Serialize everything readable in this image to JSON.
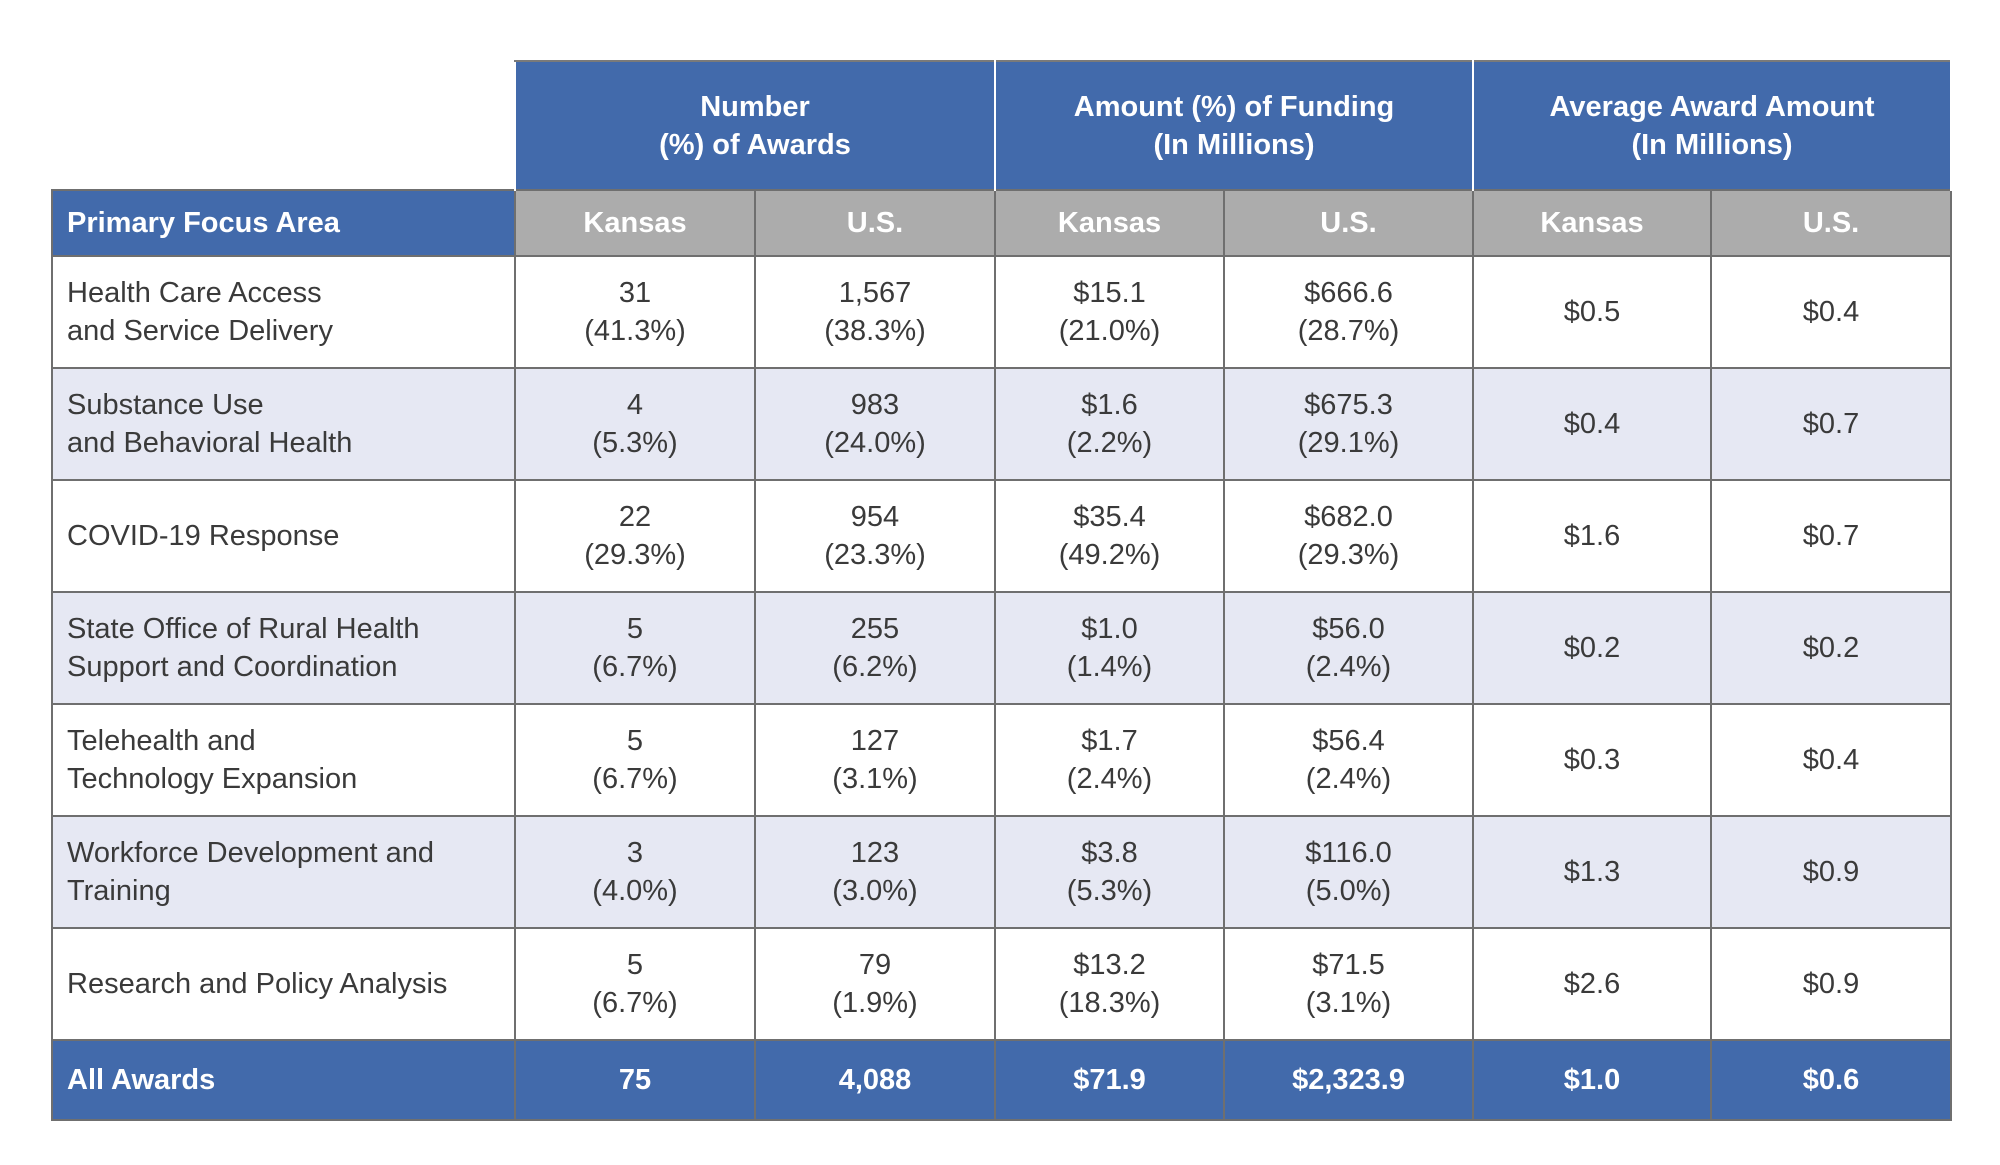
{
  "group_headers": [
    {
      "line1": "Number",
      "line2": "(%) of Awards"
    },
    {
      "line1": "Amount (%) of Funding",
      "line2": "(In Millions)"
    },
    {
      "line1": "Average Award Amount",
      "line2": "(In Millions)"
    }
  ],
  "sub_headers": [
    "Primary Focus Area",
    "Kansas",
    "U.S.",
    "Kansas",
    "U.S.",
    "Kansas",
    "U.S."
  ],
  "rows": [
    {
      "area": [
        "Health Care Access",
        "and Service Delivery"
      ],
      "ks_n": "31",
      "ks_np": "(41.3%)",
      "us_n": "1,567",
      "us_np": "(38.3%)",
      "ks_f": "$15.1",
      "ks_fp": "(21.0%)",
      "us_f": "$666.6",
      "us_fp": "(28.7%)",
      "ks_avg": "$0.5",
      "us_avg": "$0.4"
    },
    {
      "area": [
        "Substance Use",
        "and Behavioral Health"
      ],
      "ks_n": "4",
      "ks_np": "(5.3%)",
      "us_n": "983",
      "us_np": "(24.0%)",
      "ks_f": "$1.6",
      "ks_fp": "(2.2%)",
      "us_f": "$675.3",
      "us_fp": "(29.1%)",
      "ks_avg": "$0.4",
      "us_avg": "$0.7"
    },
    {
      "area": [
        "COVID-19 Response",
        ""
      ],
      "ks_n": "22",
      "ks_np": "(29.3%)",
      "us_n": "954",
      "us_np": "(23.3%)",
      "ks_f": "$35.4",
      "ks_fp": "(49.2%)",
      "us_f": "$682.0",
      "us_fp": "(29.3%)",
      "ks_avg": "$1.6",
      "us_avg": "$0.7"
    },
    {
      "area": [
        "State Office of Rural Health",
        "Support and Coordination"
      ],
      "ks_n": "5",
      "ks_np": "(6.7%)",
      "us_n": "255",
      "us_np": "(6.2%)",
      "ks_f": "$1.0",
      "ks_fp": "(1.4%)",
      "us_f": "$56.0",
      "us_fp": "(2.4%)",
      "ks_avg": "$0.2",
      "us_avg": "$0.2"
    },
    {
      "area": [
        "Telehealth and",
        "Technology Expansion"
      ],
      "ks_n": "5",
      "ks_np": "(6.7%)",
      "us_n": "127",
      "us_np": "(3.1%)",
      "ks_f": "$1.7",
      "ks_fp": "(2.4%)",
      "us_f": "$56.4",
      "us_fp": "(2.4%)",
      "ks_avg": "$0.3",
      "us_avg": "$0.4"
    },
    {
      "area": [
        "Workforce Development and",
        "Training"
      ],
      "ks_n": "3",
      "ks_np": "(4.0%)",
      "us_n": "123",
      "us_np": "(3.0%)",
      "ks_f": "$3.8",
      "ks_fp": "(5.3%)",
      "us_f": "$116.0",
      "us_fp": "(5.0%)",
      "ks_avg": "$1.3",
      "us_avg": "$0.9"
    },
    {
      "area": [
        "Research and Policy Analysis",
        ""
      ],
      "ks_n": "5",
      "ks_np": "(6.7%)",
      "us_n": "79",
      "us_np": "(1.9%)",
      "ks_f": "$13.2",
      "ks_fp": "(18.3%)",
      "us_f": "$71.5",
      "us_fp": "(3.1%)",
      "ks_avg": "$2.6",
      "us_avg": "$0.9"
    }
  ],
  "total": {
    "area": "All Awards",
    "ks_n": "75",
    "us_n": "4,088",
    "ks_f": "$71.9",
    "us_f": "$2,323.9",
    "ks_avg": "$1.0",
    "us_avg": "$0.6"
  },
  "colors": {
    "header_blue": "#426aab",
    "subheader_gray": "#acacac",
    "stripe": "#e6e8f3"
  }
}
